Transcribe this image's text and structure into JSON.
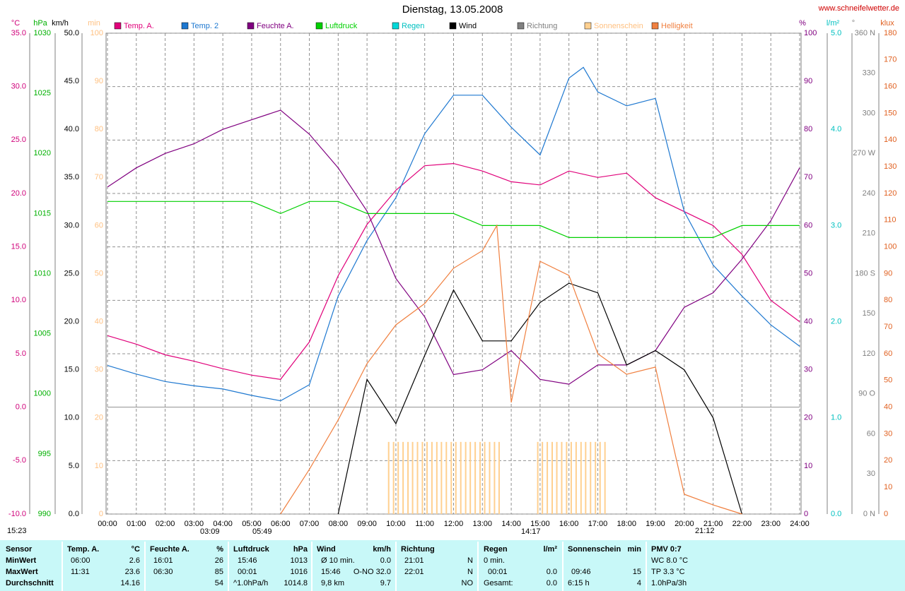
{
  "chart_data": {
    "type": "line",
    "title": "Dienstag, 13.05.2008",
    "xlim": [
      0,
      24
    ],
    "xticks": [
      {
        "value": 0,
        "label": "00:00"
      },
      {
        "value": 1,
        "label": "01:00"
      },
      {
        "value": 2,
        "label": "02:00"
      },
      {
        "value": 3,
        "label": "03:00"
      },
      {
        "value": 4,
        "label": "04:00"
      },
      {
        "value": 5,
        "label": "05:00"
      },
      {
        "value": 6,
        "label": "06:00"
      },
      {
        "value": 7,
        "label": "07:00"
      },
      {
        "value": 8,
        "label": "08:00"
      },
      {
        "value": 9,
        "label": "09:00"
      },
      {
        "value": 10,
        "label": "10:00"
      },
      {
        "value": 11,
        "label": "11:00"
      },
      {
        "value": 12,
        "label": "12:00"
      },
      {
        "value": 13,
        "label": "13:00"
      },
      {
        "value": 14,
        "label": "14:00"
      },
      {
        "value": 15,
        "label": "15:00"
      },
      {
        "value": 16,
        "label": "16:00"
      },
      {
        "value": 17,
        "label": "17:00"
      },
      {
        "value": 18,
        "label": "18:00"
      },
      {
        "value": 19,
        "label": "19:00"
      },
      {
        "value": 20,
        "label": "20:00"
      },
      {
        "value": 21,
        "label": "21:00"
      },
      {
        "value": 22,
        "label": "22:00"
      },
      {
        "value": 23,
        "label": "23:00"
      },
      {
        "value": 24,
        "label": "24:00"
      }
    ],
    "axes": [
      {
        "unit": "°C",
        "color": "#d0007a",
        "grid": true,
        "ylim": [
          -10,
          35
        ],
        "yticks": [
          {
            "value": -10,
            "label": "-10.0"
          },
          {
            "value": -5,
            "label": "-5.0"
          },
          {
            "value": 0,
            "label": "0.0"
          },
          {
            "value": 5,
            "label": "5.0"
          },
          {
            "value": 10,
            "label": "10.0"
          },
          {
            "value": 15,
            "label": "15.0"
          },
          {
            "value": 20,
            "label": "20.0"
          },
          {
            "value": 25,
            "label": "25.0"
          },
          {
            "value": 30,
            "label": "30.0"
          },
          {
            "value": 35,
            "label": "35.0"
          }
        ]
      },
      {
        "unit": "hPa",
        "color": "#00b000",
        "ylim": [
          990,
          1030
        ],
        "yticks": [
          990,
          995,
          1000,
          1005,
          1010,
          1015,
          1020,
          1025,
          1030
        ]
      },
      {
        "unit": "km/h",
        "color": "#000000",
        "ylim": [
          0,
          50
        ],
        "yticks": [
          {
            "value": 0,
            "label": "0.0"
          },
          {
            "value": 5,
            "label": "5.0"
          },
          {
            "value": 10,
            "label": "10.0"
          },
          {
            "value": 15,
            "label": "15.0"
          },
          {
            "value": 20,
            "label": "20.0"
          },
          {
            "value": 25,
            "label": "25.0"
          },
          {
            "value": 30,
            "label": "30.0"
          },
          {
            "value": 35,
            "label": "35.0"
          },
          {
            "value": 40,
            "label": "40.0"
          },
          {
            "value": 45,
            "label": "45.0"
          },
          {
            "value": 50,
            "label": "50.0"
          }
        ]
      },
      {
        "unit": "min",
        "color": "#ffc080",
        "ylim": [
          0,
          100
        ],
        "yticks": [
          0,
          10,
          20,
          30,
          40,
          50,
          60,
          70,
          80,
          90,
          100
        ]
      },
      {
        "unit": "%",
        "color": "#800080",
        "ylim": [
          0,
          100
        ],
        "yticks": [
          0,
          10,
          20,
          30,
          40,
          50,
          60,
          70,
          80,
          90,
          100
        ]
      },
      {
        "unit": "l/m²",
        "color": "#00c0c0",
        "ylim": [
          0,
          5
        ],
        "yticks": [
          {
            "value": 0,
            "label": "0.0"
          },
          {
            "value": 1,
            "label": "1.0"
          },
          {
            "value": 2,
            "label": "2.0"
          },
          {
            "value": 3,
            "label": "3.0"
          },
          {
            "value": 4,
            "label": "4.0"
          },
          {
            "value": 5,
            "label": "5.0"
          }
        ]
      },
      {
        "unit": "°",
        "color": "#808080",
        "ylim": [
          0,
          360
        ],
        "yticks": [
          {
            "value": 0,
            "label": "0 N"
          },
          30,
          60,
          {
            "value": 90,
            "label": "90 O"
          },
          120,
          150,
          {
            "value": 180,
            "label": "180 S"
          },
          210,
          240,
          {
            "value": 270,
            "label": "270 W"
          },
          300,
          330,
          {
            "value": 360,
            "label": "360 N"
          }
        ]
      },
      {
        "unit": "klux",
        "color": "#e06020",
        "ylim": [
          0,
          180
        ],
        "yticks": [
          0,
          10,
          20,
          30,
          40,
          50,
          60,
          70,
          80,
          90,
          100,
          110,
          120,
          130,
          140,
          150,
          160,
          170,
          180
        ]
      }
    ],
    "series": [
      {
        "name": "Temp. A.",
        "color": "#e0007a",
        "axis": "°C",
        "x": [
          0,
          1,
          2,
          3,
          4,
          5,
          6,
          7,
          8,
          9,
          10,
          11,
          12,
          13,
          14,
          15,
          16,
          17,
          18,
          19,
          20,
          21,
          22,
          23,
          24
        ],
        "values": [
          6.7,
          5.9,
          4.9,
          4.3,
          3.6,
          3.0,
          2.6,
          6.1,
          12.3,
          17.1,
          20.3,
          22.6,
          22.8,
          22.1,
          21.1,
          20.8,
          22.1,
          21.5,
          21.9,
          19.6,
          18.3,
          17.0,
          14.3,
          10.0,
          8.0
        ]
      },
      {
        "name": "Temp. 2",
        "color": "#1e78d0",
        "axis": "°C",
        "x": [
          0,
          1,
          2,
          3,
          4,
          5,
          6,
          7,
          8,
          9,
          10,
          11,
          12,
          13,
          14,
          15,
          16,
          16.5,
          17,
          18,
          19,
          20,
          21,
          22,
          23,
          24
        ],
        "values": [
          3.9,
          3.1,
          2.4,
          2.0,
          1.7,
          1.1,
          0.6,
          2.1,
          10.4,
          15.6,
          19.6,
          25.6,
          29.2,
          29.2,
          26.2,
          23.6,
          30.8,
          31.8,
          29.5,
          28.2,
          28.9,
          18.3,
          13.3,
          10.4,
          7.7,
          5.7
        ]
      },
      {
        "name": "Feuchte A.",
        "color": "#800080",
        "axis": "%",
        "x": [
          0,
          1,
          2,
          3,
          4,
          5,
          6,
          7,
          8,
          9,
          10,
          11,
          12,
          13,
          14,
          15,
          16,
          17,
          18,
          19,
          20,
          21,
          22,
          23,
          24
        ],
        "values": [
          68,
          72,
          75,
          77,
          80,
          82,
          84,
          79,
          72,
          63,
          49,
          41,
          29,
          30,
          34,
          28,
          27,
          31,
          31,
          34,
          43,
          46,
          53,
          61,
          72
        ]
      },
      {
        "name": "Luftdruck",
        "color": "#00d000",
        "axis": "hPa",
        "x": [
          0,
          1,
          2,
          3,
          4,
          5,
          6,
          7,
          8,
          9,
          10,
          11,
          12,
          13,
          14,
          15,
          16,
          17,
          18,
          19,
          20,
          21,
          22,
          23,
          24
        ],
        "values": [
          1016,
          1016,
          1016,
          1016,
          1016,
          1016,
          1015,
          1016,
          1016,
          1015,
          1015,
          1015,
          1015,
          1014,
          1014,
          1014,
          1013,
          1013,
          1013,
          1013,
          1013,
          1013,
          1014,
          1014,
          1014
        ]
      },
      {
        "name": "Regen",
        "color": "#00d8d8",
        "axis": "l/m²",
        "x": [],
        "values": []
      },
      {
        "name": "Wind",
        "color": "#000000",
        "axis": "km/h",
        "x": [
          0,
          1,
          2,
          3,
          4,
          5,
          6,
          7,
          8,
          9,
          10,
          11,
          12,
          13,
          14,
          15,
          16,
          17,
          18,
          19,
          20,
          21,
          22,
          23,
          24
        ],
        "values": [
          null,
          null,
          null,
          null,
          null,
          null,
          null,
          null,
          0,
          14.0,
          9.4,
          16.5,
          23.3,
          18.0,
          18.0,
          22.0,
          24.0,
          23.0,
          15.5,
          17.0,
          15.0,
          10.0,
          0,
          null,
          null
        ]
      },
      {
        "name": "Richtung",
        "color": "#808080",
        "axis": "°",
        "x": [],
        "values": []
      },
      {
        "name": "Sonnenschein",
        "color": "#ffd090",
        "axis": "min",
        "x": [
          9.75,
          9.92,
          10.08,
          10.25,
          10.42,
          10.58,
          10.75,
          10.92,
          11.08,
          11.25,
          11.42,
          11.58,
          11.75,
          11.92,
          12.08,
          12.25,
          12.42,
          12.58,
          12.75,
          12.92,
          13.08,
          13.25,
          13.42,
          13.58,
          14.92,
          15.08,
          15.25,
          15.42,
          15.58,
          15.75,
          15.92,
          16.08,
          16.25,
          16.42,
          16.58,
          16.75,
          16.92,
          17.08,
          17.25
        ],
        "values": [
          15,
          15,
          15,
          15,
          15,
          15,
          15,
          15,
          15,
          15,
          15,
          15,
          15,
          15,
          15,
          15,
          15,
          15,
          15,
          15,
          15,
          15,
          15,
          15,
          15,
          15,
          15,
          15,
          15,
          15,
          15,
          15,
          15,
          15,
          15,
          15,
          15,
          15,
          15
        ]
      },
      {
        "name": "Helligkeit",
        "color": "#f08040",
        "axis": "klux",
        "x": [
          6,
          7,
          8,
          9,
          10,
          11,
          12,
          13,
          13.5,
          14,
          15,
          16,
          17,
          18,
          19,
          20,
          21,
          22
        ],
        "values": [
          0,
          16.7,
          35.2,
          56.3,
          70.8,
          78.8,
          92,
          98.6,
          108,
          41.8,
          94.6,
          89.3,
          60,
          52.3,
          55,
          7.4,
          3.4,
          0
        ]
      }
    ],
    "annotations": [
      "15:23",
      "03:09",
      "05:49",
      "14:17",
      "21:12"
    ]
  },
  "site": "www.schneifelwetter.de",
  "table": {
    "rows": [
      [
        "Sensor",
        "Temp. A.",
        "°C",
        "Feuchte A.",
        "%",
        "Luftdruck",
        "hPa",
        "Wind",
        "km/h",
        "Richtung",
        "Regen",
        "l/m²",
        "Sonnenschein",
        "min",
        "PMV 0:7"
      ],
      [
        "MinWert",
        "06:00",
        "2.6",
        "16:01",
        "26",
        "15:46",
        "1013",
        "Ø 10 min.",
        "0.0",
        "21:01",
        "N",
        "0 min.",
        "WC 8.0 °C"
      ],
      [
        "MaxWert",
        "11:31",
        "23.6",
        "06:30",
        "85",
        "00:01",
        "1016",
        "15:46",
        "O-NO 32.0",
        "22:01",
        "N",
        "00:01",
        "0.0",
        "09:46",
        "15",
        "TP 3.3 °C"
      ],
      [
        "Durchschnitt",
        "14.16",
        "54",
        "^1.0hPa/h",
        "1014.8",
        "9,8 km",
        "9.7",
        "NO",
        "Gesamt:",
        "0.0",
        "6:15 h",
        "4",
        "1.0hPa/3h"
      ]
    ]
  }
}
